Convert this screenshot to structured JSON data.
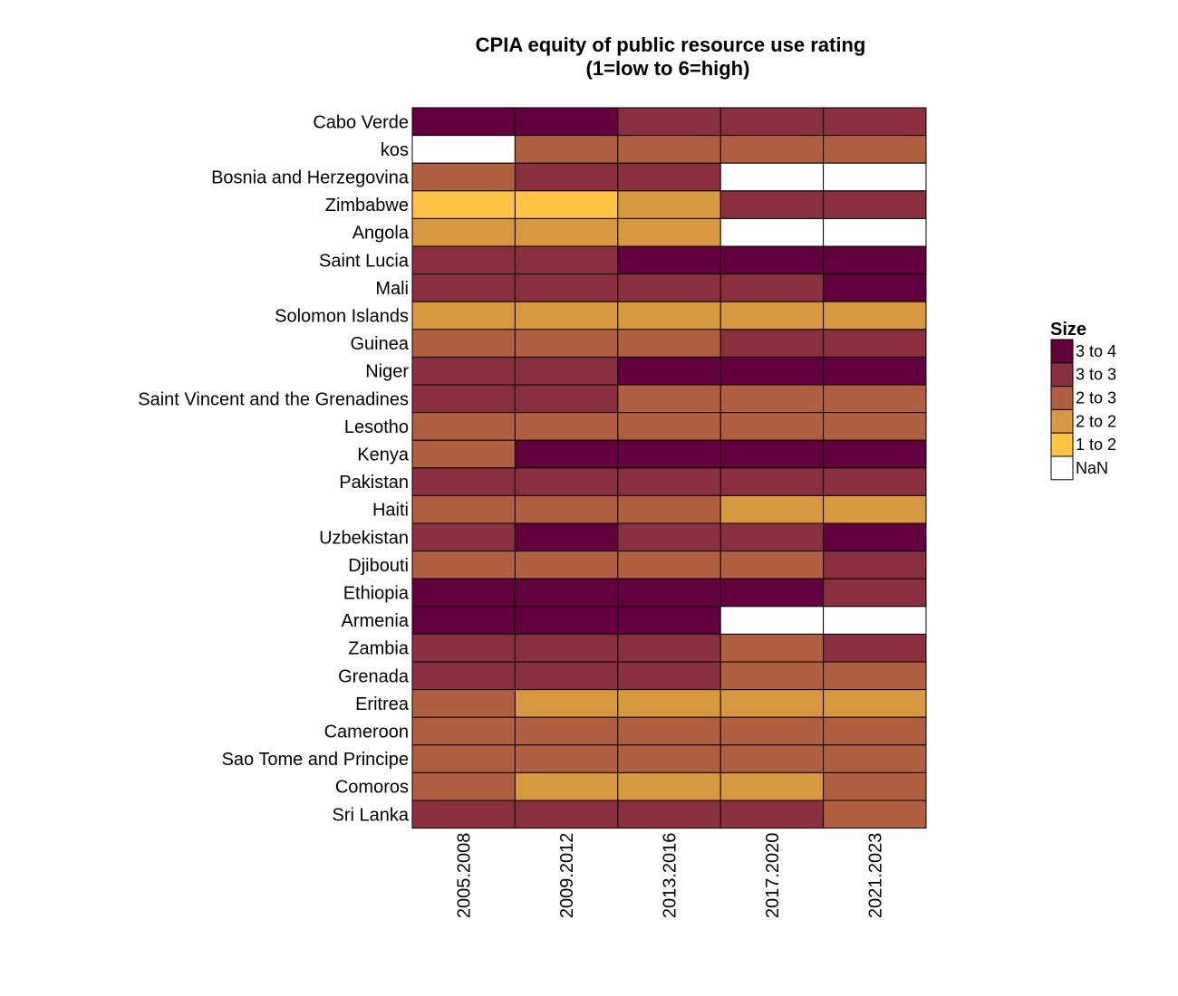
{
  "chart_data": {
    "type": "heatmap",
    "title_lines": [
      "CPIA equity of public resource use rating",
      "(1=low to 6=high)"
    ],
    "x": [
      "2005.2008",
      "2009.2012",
      "2013.2016",
      "2017.2020",
      "2021.2023"
    ],
    "y": [
      "Cabo Verde",
      "kos",
      "Bosnia and Herzegovina",
      "Zimbabwe",
      "Angola",
      "Saint Lucia",
      "Mali",
      "Solomon Islands",
      "Guinea",
      "Niger",
      "Saint Vincent and the Grenadines",
      "Lesotho",
      "Kenya",
      "Pakistan",
      "Haiti",
      "Uzbekistan",
      "Djibouti",
      "Ethiopia",
      "Armenia",
      "Zambia",
      "Grenada",
      "Eritrea",
      "Cameroon",
      "Sao Tome and Principe",
      "Comoros",
      "Sri Lanka"
    ],
    "values": [
      [
        "3 to 4",
        "3 to 4",
        "3 to 3",
        "3 to 3",
        "3 to 3"
      ],
      [
        "NaN",
        "2 to 3",
        "2 to 3",
        "2 to 3",
        "2 to 3"
      ],
      [
        "2 to 3",
        "3 to 3",
        "3 to 3",
        "NaN",
        "NaN"
      ],
      [
        "1 to 2",
        "1 to 2",
        "2 to 2",
        "3 to 3",
        "3 to 3"
      ],
      [
        "2 to 2",
        "2 to 2",
        "2 to 2",
        "NaN",
        "NaN"
      ],
      [
        "3 to 3",
        "3 to 3",
        "3 to 4",
        "3 to 4",
        "3 to 4"
      ],
      [
        "3 to 3",
        "3 to 3",
        "3 to 3",
        "3 to 3",
        "3 to 4"
      ],
      [
        "2 to 2",
        "2 to 2",
        "2 to 2",
        "2 to 2",
        "2 to 2"
      ],
      [
        "2 to 3",
        "2 to 3",
        "2 to 3",
        "3 to 3",
        "3 to 3"
      ],
      [
        "3 to 3",
        "3 to 3",
        "3 to 4",
        "3 to 4",
        "3 to 4"
      ],
      [
        "3 to 3",
        "3 to 3",
        "2 to 3",
        "2 to 3",
        "2 to 3"
      ],
      [
        "2 to 3",
        "2 to 3",
        "2 to 3",
        "2 to 3",
        "2 to 3"
      ],
      [
        "2 to 3",
        "3 to 4",
        "3 to 4",
        "3 to 4",
        "3 to 4"
      ],
      [
        "3 to 3",
        "3 to 3",
        "3 to 3",
        "3 to 3",
        "3 to 3"
      ],
      [
        "2 to 3",
        "2 to 3",
        "2 to 3",
        "2 to 2",
        "2 to 2"
      ],
      [
        "3 to 3",
        "3 to 4",
        "3 to 3",
        "3 to 3",
        "3 to 4"
      ],
      [
        "2 to 3",
        "2 to 3",
        "2 to 3",
        "2 to 3",
        "3 to 3"
      ],
      [
        "3 to 4",
        "3 to 4",
        "3 to 4",
        "3 to 4",
        "3 to 3"
      ],
      [
        "3 to 4",
        "3 to 4",
        "3 to 4",
        "NaN",
        "NaN"
      ],
      [
        "3 to 3",
        "3 to 3",
        "3 to 3",
        "2 to 3",
        "3 to 3"
      ],
      [
        "3 to 3",
        "3 to 3",
        "3 to 3",
        "2 to 3",
        "2 to 3"
      ],
      [
        "2 to 3",
        "2 to 2",
        "2 to 2",
        "2 to 2",
        "2 to 2"
      ],
      [
        "2 to 3",
        "2 to 3",
        "2 to 3",
        "2 to 3",
        "2 to 3"
      ],
      [
        "2 to 3",
        "2 to 3",
        "2 to 3",
        "2 to 3",
        "2 to 3"
      ],
      [
        "2 to 3",
        "2 to 2",
        "2 to 2",
        "2 to 2",
        "2 to 3"
      ],
      [
        "3 to 3",
        "3 to 3",
        "3 to 3",
        "3 to 3",
        "2 to 3"
      ]
    ],
    "legend": {
      "title": "Size",
      "placement": "right",
      "items": [
        {
          "label": "3 to 4",
          "color": "#65003e"
        },
        {
          "label": "3 to 3",
          "color": "#892f40"
        },
        {
          "label": "2 to 3",
          "color": "#b06040"
        },
        {
          "label": "2 to 2",
          "color": "#d89840"
        },
        {
          "label": "1 to 2",
          "color": "#ffc445"
        },
        {
          "label": "NaN",
          "color": "#ffffff"
        }
      ]
    }
  }
}
